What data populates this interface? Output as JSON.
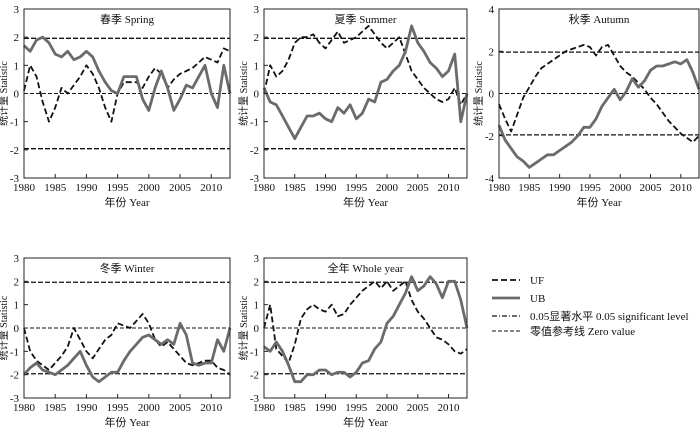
{
  "colors": {
    "uf": "#111111",
    "ub": "#6b6b6b",
    "ref": "#111111",
    "frame": "#222222"
  },
  "legend": {
    "uf": "UF",
    "ub": "UB",
    "sig": "0.05显著水平 0.05 significant level",
    "zero": "零值参考线 Zero value"
  },
  "chart_data": [
    {
      "type": "line",
      "title": "春季 Spring",
      "xlabel": "年份 Year",
      "ylabel": "统计量 Statistic",
      "xlim": [
        1980,
        2013
      ],
      "ylim": [
        -3,
        3
      ],
      "xticks": [
        1980,
        1985,
        1990,
        1995,
        2000,
        2005,
        2010
      ],
      "yticks": [
        -3,
        -2,
        -1,
        0,
        1,
        2,
        3
      ],
      "reference_lines": {
        "significance": [
          -1.96,
          1.96
        ],
        "zero": 0
      },
      "x": [
        1980,
        1981,
        1982,
        1983,
        1984,
        1985,
        1986,
        1987,
        1988,
        1989,
        1990,
        1991,
        1992,
        1993,
        1994,
        1995,
        1996,
        1997,
        1998,
        1999,
        2000,
        2001,
        2002,
        2003,
        2004,
        2005,
        2006,
        2007,
        2008,
        2009,
        2010,
        2011,
        2012,
        2013
      ],
      "series": [
        {
          "name": "UF",
          "values": [
            0.1,
            1.0,
            0.6,
            -0.3,
            -1.0,
            -0.5,
            0.2,
            0.0,
            0.3,
            0.6,
            1.0,
            0.7,
            0.2,
            -0.5,
            -1.0,
            0.0,
            0.4,
            0.4,
            0.4,
            0.2,
            0.6,
            0.9,
            0.7,
            0.2,
            0.5,
            0.7,
            0.8,
            0.9,
            1.1,
            1.3,
            1.2,
            1.1,
            1.6,
            1.5
          ]
        },
        {
          "name": "UB",
          "values": [
            1.7,
            1.5,
            1.9,
            2.0,
            1.8,
            1.4,
            1.3,
            1.5,
            1.2,
            1.3,
            1.5,
            1.3,
            0.8,
            0.4,
            0.1,
            0.0,
            0.6,
            0.6,
            0.6,
            -0.2,
            -0.6,
            0.2,
            0.8,
            0.2,
            -0.6,
            -0.2,
            0.3,
            0.2,
            0.6,
            1.0,
            0.0,
            -0.5,
            1.0,
            0.0
          ]
        }
      ]
    },
    {
      "type": "line",
      "title": "夏季 Summer",
      "xlabel": "年份 Year",
      "ylabel": "统计量 Statistic",
      "xlim": [
        1980,
        2013
      ],
      "ylim": [
        -3,
        3
      ],
      "xticks": [
        1980,
        1985,
        1990,
        1995,
        2000,
        2005,
        2010
      ],
      "yticks": [
        -3,
        -2,
        -1,
        0,
        1,
        2,
        3
      ],
      "reference_lines": {
        "significance": [
          -1.96,
          1.96
        ],
        "zero": 0
      },
      "x": [
        1980,
        1981,
        1982,
        1983,
        1984,
        1985,
        1986,
        1987,
        1988,
        1989,
        1990,
        1991,
        1992,
        1993,
        1994,
        1995,
        1996,
        1997,
        1998,
        1999,
        2000,
        2001,
        2002,
        2003,
        2004,
        2005,
        2006,
        2007,
        2008,
        2009,
        2010,
        2011,
        2012,
        2013
      ],
      "series": [
        {
          "name": "UF",
          "values": [
            0.0,
            1.0,
            0.6,
            0.8,
            1.2,
            1.8,
            2.0,
            2.0,
            2.1,
            1.8,
            1.6,
            1.9,
            2.2,
            1.8,
            1.9,
            2.0,
            2.2,
            2.4,
            2.1,
            1.8,
            1.6,
            1.8,
            2.0,
            1.4,
            0.8,
            0.5,
            0.2,
            0.0,
            -0.2,
            -0.3,
            -0.2,
            0.2,
            -0.4,
            0.0
          ]
        },
        {
          "name": "UB",
          "values": [
            0.2,
            -0.3,
            -0.4,
            -0.8,
            -1.2,
            -1.6,
            -1.2,
            -0.8,
            -0.8,
            -0.7,
            -0.9,
            -1.0,
            -0.5,
            -0.7,
            -0.4,
            -0.9,
            -0.7,
            -0.2,
            -0.3,
            0.4,
            0.5,
            0.8,
            1.0,
            1.5,
            2.4,
            1.8,
            1.5,
            1.1,
            0.9,
            0.6,
            0.8,
            1.4,
            -1.0,
            0.0
          ]
        }
      ]
    },
    {
      "type": "line",
      "title": "秋季 Autumn",
      "xlabel": "年份 Year",
      "ylabel": "统计量 Statistic",
      "xlim": [
        1980,
        2013
      ],
      "ylim": [
        -4,
        4
      ],
      "xticks": [
        1980,
        1985,
        1990,
        1995,
        2000,
        2005,
        2010
      ],
      "yticks": [
        -4,
        -2,
        0,
        2,
        4
      ],
      "reference_lines": {
        "significance": [
          -1.96,
          1.96
        ],
        "zero": 0
      },
      "x": [
        1980,
        1981,
        1982,
        1983,
        1984,
        1985,
        1986,
        1987,
        1988,
        1989,
        1990,
        1991,
        1992,
        1993,
        1994,
        1995,
        1996,
        1997,
        1998,
        1999,
        2000,
        2001,
        2002,
        2003,
        2004,
        2005,
        2006,
        2007,
        2008,
        2009,
        2010,
        2011,
        2012,
        2013
      ],
      "series": [
        {
          "name": "UF",
          "values": [
            -0.5,
            -1.2,
            -1.8,
            -1.0,
            -0.2,
            0.3,
            0.8,
            1.2,
            1.4,
            1.6,
            1.8,
            2.0,
            2.1,
            2.2,
            2.3,
            2.2,
            1.8,
            2.2,
            2.3,
            1.8,
            1.3,
            1.0,
            0.8,
            0.5,
            0.2,
            -0.2,
            -0.5,
            -0.9,
            -1.3,
            -1.6,
            -1.9,
            -2.1,
            -2.3,
            -2.0
          ]
        },
        {
          "name": "UB",
          "values": [
            -1.5,
            -2.2,
            -2.6,
            -3.0,
            -3.2,
            -3.5,
            -3.3,
            -3.1,
            -2.9,
            -2.9,
            -2.7,
            -2.5,
            -2.3,
            -2.0,
            -1.6,
            -1.6,
            -1.2,
            -0.6,
            -0.2,
            0.2,
            -0.3,
            0.1,
            0.7,
            0.3,
            0.6,
            1.1,
            1.3,
            1.3,
            1.4,
            1.5,
            1.4,
            1.6,
            1.0,
            0.2
          ]
        }
      ]
    },
    {
      "type": "line",
      "title": "冬季 Winter",
      "xlabel": "年份 Year",
      "ylabel": "统计量 Statistic",
      "xlim": [
        1980,
        2013
      ],
      "ylim": [
        -3,
        3
      ],
      "xticks": [
        1980,
        1985,
        1990,
        1995,
        2000,
        2005,
        2010
      ],
      "yticks": [
        -3,
        -2,
        -1,
        0,
        1,
        2,
        3
      ],
      "reference_lines": {
        "significance": [
          -1.96,
          1.96
        ],
        "zero": 0
      },
      "x": [
        1980,
        1981,
        1982,
        1983,
        1984,
        1985,
        1986,
        1987,
        1988,
        1989,
        1990,
        1991,
        1992,
        1993,
        1994,
        1995,
        1996,
        1997,
        1998,
        1999,
        2000,
        2001,
        2002,
        2003,
        2004,
        2005,
        2006,
        2007,
        2008,
        2009,
        2010,
        2011,
        2012,
        2013
      ],
      "series": [
        {
          "name": "UF",
          "values": [
            0.0,
            -1.0,
            -1.4,
            -1.6,
            -1.8,
            -1.5,
            -1.2,
            -0.8,
            0.0,
            -0.5,
            -1.0,
            -1.3,
            -0.9,
            -0.5,
            -0.3,
            0.2,
            0.1,
            0.0,
            0.3,
            0.6,
            0.2,
            -0.5,
            -0.8,
            -0.6,
            -0.9,
            -1.2,
            -1.5,
            -1.6,
            -1.5,
            -1.4,
            -1.4,
            -1.7,
            -1.8,
            -2.0
          ]
        },
        {
          "name": "UB",
          "values": [
            -2.0,
            -1.7,
            -1.5,
            -1.8,
            -1.9,
            -2.0,
            -1.8,
            -1.6,
            -1.3,
            -1.0,
            -1.6,
            -2.1,
            -2.3,
            -2.1,
            -1.9,
            -1.9,
            -1.4,
            -1.0,
            -0.7,
            -0.4,
            -0.3,
            -0.5,
            -0.7,
            -0.5,
            -0.7,
            0.2,
            -0.3,
            -1.5,
            -1.6,
            -1.5,
            -1.5,
            -0.5,
            -1.0,
            0.0
          ]
        }
      ]
    },
    {
      "type": "line",
      "title": "全年 Whole year",
      "xlabel": "年份 Year",
      "ylabel": "统计量 Statistic",
      "xlim": [
        1980,
        2013
      ],
      "ylim": [
        -3,
        3
      ],
      "xticks": [
        1980,
        1985,
        1990,
        1995,
        2000,
        2005,
        2010
      ],
      "yticks": [
        -3,
        -2,
        -1,
        0,
        1,
        2,
        3
      ],
      "reference_lines": {
        "significance": [
          -1.96,
          1.96
        ],
        "zero": 0
      },
      "x": [
        1980,
        1981,
        1982,
        1983,
        1984,
        1985,
        1986,
        1987,
        1988,
        1989,
        1990,
        1991,
        1992,
        1993,
        1994,
        1995,
        1996,
        1997,
        1998,
        1999,
        2000,
        2001,
        2002,
        2003,
        2004,
        2005,
        2006,
        2007,
        2008,
        2009,
        2010,
        2011,
        2012,
        2013
      ],
      "series": [
        {
          "name": "UF",
          "values": [
            0.0,
            1.0,
            -0.9,
            -1.2,
            -1.5,
            -0.7,
            0.4,
            0.8,
            1.0,
            0.8,
            0.7,
            1.0,
            0.5,
            0.6,
            1.0,
            1.3,
            1.6,
            1.8,
            2.0,
            1.7,
            2.0,
            1.6,
            1.8,
            2.0,
            1.2,
            0.7,
            0.4,
            0.0,
            -0.4,
            -0.5,
            -0.7,
            -1.0,
            -1.1,
            -0.9
          ]
        },
        {
          "name": "UB",
          "values": [
            -0.8,
            -1.0,
            -0.6,
            -1.0,
            -1.6,
            -2.3,
            -2.3,
            -2.0,
            -2.0,
            -1.8,
            -1.8,
            -2.0,
            -1.9,
            -1.9,
            -2.1,
            -1.9,
            -1.5,
            -1.4,
            -0.9,
            -0.6,
            0.2,
            0.5,
            1.0,
            1.5,
            2.2,
            1.6,
            1.8,
            2.2,
            1.9,
            1.3,
            2.0,
            2.0,
            1.2,
            0.0
          ]
        }
      ]
    }
  ]
}
